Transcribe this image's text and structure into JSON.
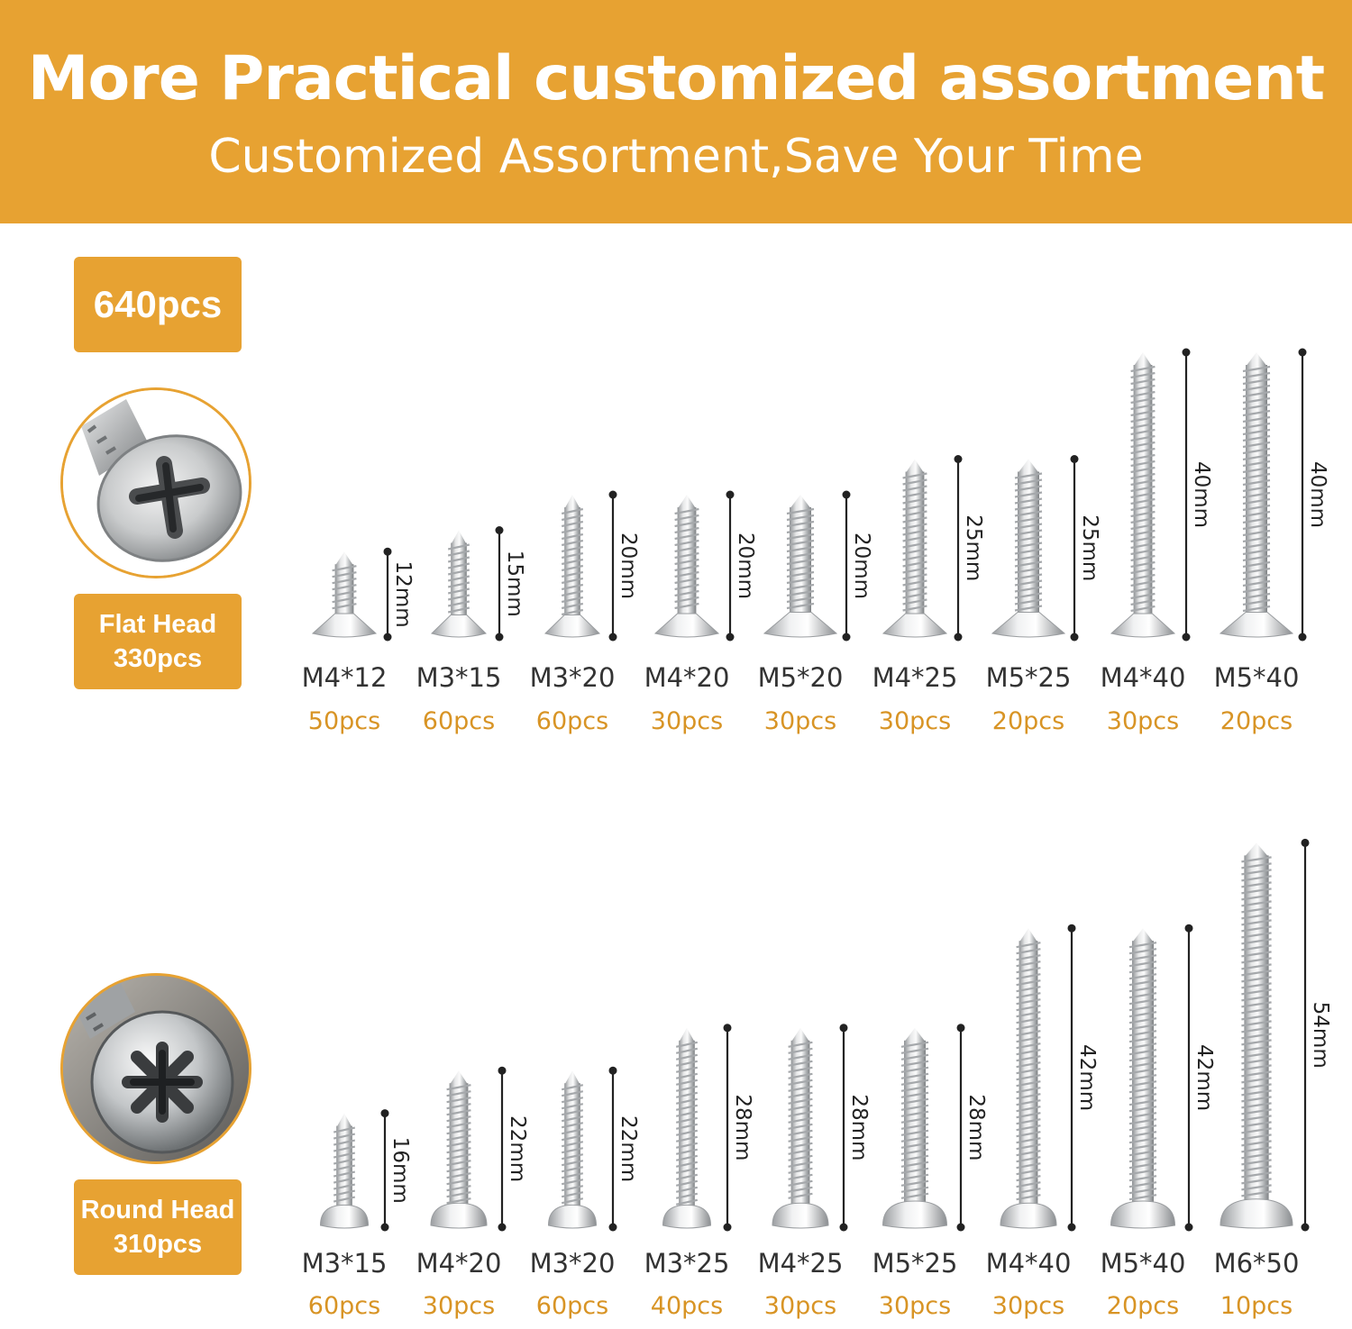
{
  "header": {
    "title": "More Practical customized assortment",
    "subtitle": "Customized Assortment,Save Your Time"
  },
  "total": "640pcs",
  "colors": {
    "accent": "#e7a232",
    "quantity": "#d89425",
    "text": "#333333"
  },
  "sections": [
    {
      "label_line1": "Flat Head",
      "label_line2": "330pcs",
      "icon": "flat-head-screw-closeup",
      "screws": [
        {
          "name": "M4*12",
          "qty": "50pcs",
          "dim": "12mm",
          "length": 12,
          "head": "flat",
          "width": 4
        },
        {
          "name": "M3*15",
          "qty": "60pcs",
          "dim": "15mm",
          "length": 15,
          "head": "flat",
          "width": 3
        },
        {
          "name": "M3*20",
          "qty": "60pcs",
          "dim": "20mm",
          "length": 20,
          "head": "flat",
          "width": 3
        },
        {
          "name": "M4*20",
          "qty": "30pcs",
          "dim": "20mm",
          "length": 20,
          "head": "flat",
          "width": 4
        },
        {
          "name": "M5*20",
          "qty": "30pcs",
          "dim": "20mm",
          "length": 20,
          "head": "flat",
          "width": 5
        },
        {
          "name": "M4*25",
          "qty": "30pcs",
          "dim": "25mm",
          "length": 25,
          "head": "flat",
          "width": 4
        },
        {
          "name": "M5*25",
          "qty": "20pcs",
          "dim": "25mm",
          "length": 25,
          "head": "flat",
          "width": 5
        },
        {
          "name": "M4*40",
          "qty": "30pcs",
          "dim": "40mm",
          "length": 40,
          "head": "flat",
          "width": 4
        },
        {
          "name": "M5*40",
          "qty": "20pcs",
          "dim": "40mm",
          "length": 40,
          "head": "flat",
          "width": 5
        }
      ]
    },
    {
      "label_line1": "Round Head",
      "label_line2": "310pcs",
      "icon": "round-head-screw-closeup",
      "screws": [
        {
          "name": "M3*15",
          "qty": "60pcs",
          "dim": "16mm",
          "length": 16,
          "head": "round",
          "width": 3
        },
        {
          "name": "M4*20",
          "qty": "30pcs",
          "dim": "22mm",
          "length": 22,
          "head": "round",
          "width": 4
        },
        {
          "name": "M3*20",
          "qty": "60pcs",
          "dim": "22mm",
          "length": 22,
          "head": "round",
          "width": 3
        },
        {
          "name": "M3*25",
          "qty": "40pcs",
          "dim": "28mm",
          "length": 28,
          "head": "round",
          "width": 3
        },
        {
          "name": "M4*25",
          "qty": "30pcs",
          "dim": "28mm",
          "length": 28,
          "head": "round",
          "width": 4
        },
        {
          "name": "M5*25",
          "qty": "30pcs",
          "dim": "28mm",
          "length": 28,
          "head": "round",
          "width": 5
        },
        {
          "name": "M4*40",
          "qty": "30pcs",
          "dim": "42mm",
          "length": 42,
          "head": "round",
          "width": 4
        },
        {
          "name": "M5*40",
          "qty": "20pcs",
          "dim": "42mm",
          "length": 42,
          "head": "round",
          "width": 5
        },
        {
          "name": "M6*50",
          "qty": "10pcs",
          "dim": "54mm",
          "length": 54,
          "head": "round",
          "width": 6
        }
      ]
    }
  ]
}
